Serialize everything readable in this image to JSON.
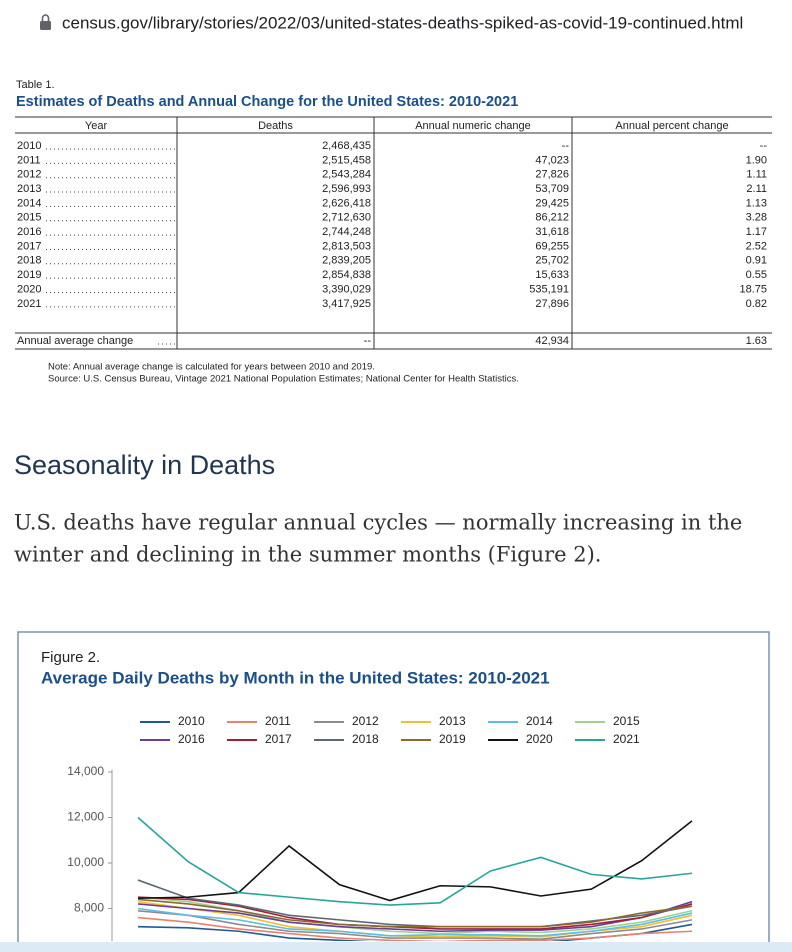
{
  "browser": {
    "url": "census.gov/library/stories/2022/03/united-states-deaths-spiked-as-covid-19-continued.html"
  },
  "table": {
    "label": "Table 1.",
    "title": "Estimates of Deaths and Annual Change for the United States: 2010-2021",
    "headers": [
      "Year",
      "Deaths",
      "Annual numeric change",
      "Annual percent change"
    ],
    "rows": [
      [
        "2010",
        "2,468,435",
        "--",
        "--"
      ],
      [
        "2011",
        "2,515,458",
        "47,023",
        "1.90"
      ],
      [
        "2012",
        "2,543,284",
        "27,826",
        "1.11"
      ],
      [
        "2013",
        "2,596,993",
        "53,709",
        "2.11"
      ],
      [
        "2014",
        "2,626,418",
        "29,425",
        "1.13"
      ],
      [
        "2015",
        "2,712,630",
        "86,212",
        "3.28"
      ],
      [
        "2016",
        "2,744,248",
        "31,618",
        "1.17"
      ],
      [
        "2017",
        "2,813,503",
        "69,255",
        "2.52"
      ],
      [
        "2018",
        "2,839,205",
        "25,702",
        "0.91"
      ],
      [
        "2019",
        "2,854,838",
        "15,633",
        "0.55"
      ],
      [
        "2020",
        "3,390,029",
        "535,191",
        "18.75"
      ],
      [
        "2021",
        "3,417,925",
        "27,896",
        "0.82"
      ]
    ],
    "average_row": [
      "Annual average change",
      "--",
      "42,934",
      "1.63"
    ],
    "note": "Note: Annual average change is calculated for years between 2010 and 2019.",
    "source": "Source: U.S. Census Bureau, Vintage 2021 National Population Estimates; National Center for Health Statistics."
  },
  "section": {
    "heading": "Seasonality in Deaths",
    "paragraph_lines": [
      "U.S. deaths have regular annual cycles — normally increasing in the",
      "winter and declining in the summer months (Figure 2)."
    ]
  },
  "chart_data": {
    "type": "line",
    "label": "Figure 2.",
    "title": "Average Daily Deaths by Month in the United States: 2010-2021",
    "ylim": [
      6000,
      14000
    ],
    "yticks": [
      {
        "value": 14000,
        "label": "14,000"
      },
      {
        "value": 12000,
        "label": "12,000"
      },
      {
        "value": 10000,
        "label": "10,000"
      },
      {
        "value": 8000,
        "label": "8,000"
      }
    ],
    "series": [
      {
        "name": "2010",
        "color": "#1f5a96",
        "values": [
          7200,
          7150,
          7000,
          6700,
          6600,
          6500,
          6500,
          6500,
          6500,
          6700,
          6900,
          7300
        ]
      },
      {
        "name": "2011",
        "color": "#e8826d",
        "values": [
          7600,
          7400,
          7100,
          6900,
          6700,
          6600,
          6550,
          6600,
          6600,
          6700,
          6900,
          7000
        ]
      },
      {
        "name": "2012",
        "color": "#8c8c8c",
        "values": [
          7900,
          7700,
          7300,
          7000,
          6900,
          6700,
          6700,
          6700,
          6650,
          6900,
          7100,
          7500
        ]
      },
      {
        "name": "2013",
        "color": "#f0c030",
        "values": [
          8300,
          8000,
          7700,
          7200,
          7000,
          6800,
          6750,
          6800,
          6750,
          7000,
          7200,
          7700
        ]
      },
      {
        "name": "2014",
        "color": "#5bbde8",
        "values": [
          8000,
          7700,
          7500,
          7100,
          7000,
          6800,
          6850,
          6850,
          6800,
          7000,
          7300,
          7800
        ]
      },
      {
        "name": "2015",
        "color": "#9fd18f",
        "values": [
          8500,
          8300,
          7900,
          7400,
          7200,
          7000,
          6900,
          7000,
          6950,
          7100,
          7400,
          7900
        ]
      },
      {
        "name": "2016",
        "color": "#6a3d9a",
        "values": [
          8200,
          8000,
          7800,
          7400,
          7200,
          7100,
          7000,
          7050,
          7050,
          7200,
          7600,
          8300
        ]
      },
      {
        "name": "2017",
        "color": "#a0203a",
        "values": [
          8500,
          8400,
          8100,
          7600,
          7300,
          7200,
          7100,
          7100,
          7100,
          7300,
          7600,
          8200
        ]
      },
      {
        "name": "2018",
        "color": "#5a6a75",
        "values": [
          9250,
          8450,
          8150,
          7700,
          7500,
          7300,
          7200,
          7200,
          7200,
          7450,
          7700,
          8100
        ]
      },
      {
        "name": "2019",
        "color": "#8b6a2f",
        "values": [
          8400,
          8200,
          7900,
          7500,
          7300,
          7200,
          7200,
          7200,
          7200,
          7400,
          7800,
          8100
        ]
      },
      {
        "name": "2020",
        "color": "#111111",
        "values": [
          8450,
          8500,
          8700,
          10750,
          9050,
          8350,
          9000,
          8950,
          8550,
          8850,
          10100,
          11850
        ]
      },
      {
        "name": "2021",
        "color": "#26a69a",
        "values": [
          12000,
          10050,
          8700,
          8500,
          8300,
          8150,
          8250,
          9650,
          10250,
          9500,
          9300,
          9550
        ]
      }
    ]
  }
}
